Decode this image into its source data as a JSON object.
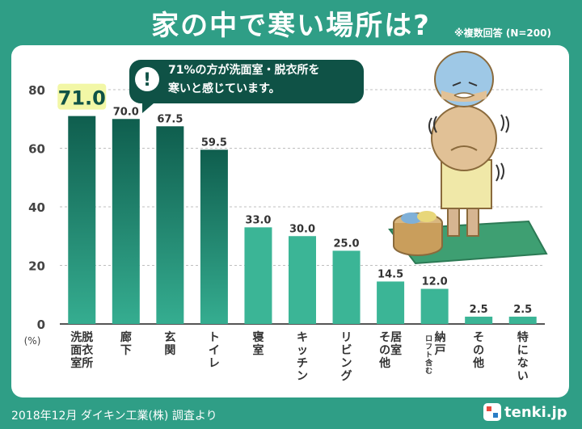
{
  "header": {
    "title": "家の中で寒い場所は?",
    "note": "※複数回答 (N=200)"
  },
  "callout": {
    "line1": "71%の方が洗面室・脱衣所を",
    "line2": "寒いと感じています。",
    "icon": "exclamation-icon"
  },
  "footer": {
    "source": "2018年12月 ダイキン工業(株) 調査より",
    "logo": "tenki.jp"
  },
  "colors": {
    "background": "#2f9e86",
    "bar_dark_top": "#0f5e4e",
    "bar_dark_bottom": "#2ea389",
    "bar_light": "#3bb596",
    "highlight": "#f2f7a6",
    "callout_bg": "#0f5246"
  },
  "chart_data": {
    "type": "bar",
    "unit_label": "(%)",
    "ylim": [
      0,
      80
    ],
    "yticks": [
      0,
      20,
      40,
      60,
      80
    ],
    "categories": [
      "脱衣所\n洗面室",
      "廊下",
      "玄関",
      "トイレ",
      "寝室",
      "キッチン",
      "リビング",
      "居室\nその他",
      "納戸\n(ロフト含む)",
      "その他",
      "特にない"
    ],
    "values": [
      71.0,
      70.0,
      67.5,
      59.5,
      33.0,
      30.0,
      25.0,
      14.5,
      12.0,
      2.5,
      2.5
    ],
    "labels": [
      "71.0",
      "70.0",
      "67.5",
      "59.5",
      "33.0",
      "30.0",
      "25.0",
      "14.5",
      "12.0",
      "2.5",
      "2.5"
    ],
    "highlight_index": 0
  }
}
